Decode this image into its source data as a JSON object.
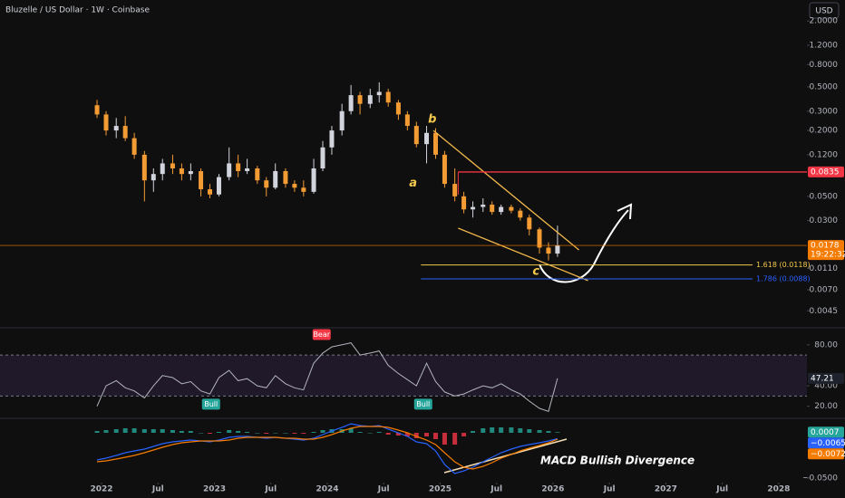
{
  "chart_data": [
    {
      "type": "candlestick",
      "title": "Bluzelle / US Dollar · 1W · Coinbase",
      "currency": "USD",
      "x": [
        2021.96,
        2022.04,
        2022.13,
        2022.21,
        2022.29,
        2022.38,
        2022.46,
        2022.54,
        2022.63,
        2022.71,
        2022.79,
        2022.88,
        2022.96,
        2023.04,
        2023.13,
        2023.21,
        2023.29,
        2023.38,
        2023.46,
        2023.54,
        2023.63,
        2023.71,
        2023.79,
        2023.88,
        2023.96,
        2024.04,
        2024.13,
        2024.21,
        2024.29,
        2024.38,
        2024.46,
        2024.54,
        2024.63,
        2024.71,
        2024.79,
        2024.88,
        2024.96,
        2025.04,
        2025.13,
        2025.21,
        2025.29,
        2025.38,
        2025.46,
        2025.54,
        2025.63,
        2025.71,
        2025.79,
        2025.88,
        2025.96,
        2026.04
      ],
      "open": [
        0.34,
        0.28,
        0.2,
        0.22,
        0.17,
        0.12,
        0.07,
        0.08,
        0.1,
        0.09,
        0.08,
        0.085,
        0.058,
        0.052,
        0.075,
        0.1,
        0.085,
        0.09,
        0.07,
        0.06,
        0.085,
        0.065,
        0.06,
        0.055,
        0.09,
        0.14,
        0.2,
        0.3,
        0.42,
        0.35,
        0.42,
        0.45,
        0.36,
        0.28,
        0.22,
        0.15,
        0.19,
        0.12,
        0.065,
        0.05,
        0.038,
        0.04,
        0.042,
        0.036,
        0.04,
        0.037,
        0.032,
        0.025,
        0.017,
        0.015
      ],
      "high": [
        0.38,
        0.3,
        0.26,
        0.27,
        0.19,
        0.13,
        0.09,
        0.11,
        0.12,
        0.1,
        0.1,
        0.09,
        0.065,
        0.08,
        0.14,
        0.12,
        0.11,
        0.095,
        0.075,
        0.1,
        0.09,
        0.07,
        0.07,
        0.11,
        0.16,
        0.22,
        0.35,
        0.52,
        0.45,
        0.48,
        0.55,
        0.48,
        0.38,
        0.3,
        0.24,
        0.22,
        0.21,
        0.13,
        0.09,
        0.055,
        0.045,
        0.048,
        0.045,
        0.042,
        0.042,
        0.039,
        0.034,
        0.026,
        0.019,
        0.027
      ],
      "low": [
        0.26,
        0.18,
        0.17,
        0.16,
        0.11,
        0.045,
        0.055,
        0.07,
        0.08,
        0.07,
        0.07,
        0.05,
        0.048,
        0.05,
        0.07,
        0.075,
        0.08,
        0.065,
        0.05,
        0.058,
        0.06,
        0.055,
        0.05,
        0.053,
        0.085,
        0.12,
        0.18,
        0.28,
        0.28,
        0.32,
        0.36,
        0.33,
        0.25,
        0.2,
        0.14,
        0.1,
        0.11,
        0.06,
        0.045,
        0.035,
        0.032,
        0.036,
        0.034,
        0.034,
        0.035,
        0.03,
        0.022,
        0.015,
        0.013,
        0.014
      ],
      "close": [
        0.28,
        0.2,
        0.22,
        0.17,
        0.12,
        0.07,
        0.08,
        0.1,
        0.09,
        0.08,
        0.085,
        0.058,
        0.052,
        0.075,
        0.1,
        0.085,
        0.09,
        0.07,
        0.06,
        0.085,
        0.065,
        0.06,
        0.055,
        0.09,
        0.14,
        0.2,
        0.3,
        0.42,
        0.35,
        0.42,
        0.45,
        0.36,
        0.28,
        0.22,
        0.15,
        0.19,
        0.12,
        0.065,
        0.05,
        0.038,
        0.04,
        0.042,
        0.036,
        0.04,
        0.037,
        0.032,
        0.025,
        0.017,
        0.015,
        0.0178
      ],
      "up_color": "#d1d4dc",
      "down_color": "#f39c34",
      "log_scale": true,
      "grid": false,
      "xlim": [
        2021.1,
        2028.25
      ],
      "ylim": [
        0.00315,
        3.11
      ],
      "xticks": [
        2022,
        {
          "value": 2022.5,
          "label": "Jul"
        },
        2023,
        {
          "value": 2023.5,
          "label": "Jul"
        },
        2024,
        {
          "value": 2024.5,
          "label": "Jul"
        },
        2025,
        {
          "value": 2025.5,
          "label": "Jul"
        },
        2026,
        {
          "value": 2026.5,
          "label": "Jul"
        },
        2027,
        {
          "value": 2027.5,
          "label": "Jul"
        },
        2028
      ],
      "yticks": [
        {
          "value": 2.0,
          "label": "2.0000"
        },
        {
          "value": 1.2,
          "label": "1.2000"
        },
        {
          "value": 0.8,
          "label": "0.8000"
        },
        {
          "value": 0.5,
          "label": "0.5000"
        },
        {
          "value": 0.3,
          "label": "0.3000"
        },
        {
          "value": 0.2,
          "label": "0.2000"
        },
        {
          "value": 0.12,
          "label": "0.1200"
        },
        {
          "value": 0.05,
          "label": "0.0500"
        },
        {
          "value": 0.03,
          "label": "0.0300"
        },
        {
          "value": 0.011,
          "label": "0.0110"
        },
        {
          "value": 0.007,
          "label": "0.0070"
        },
        {
          "value": 0.0045,
          "label": "0.0045"
        }
      ],
      "countdown": "19:22:32",
      "price_color": "#f57c00",
      "levels": [
        {
          "value": 0.0835,
          "from": 2025.16,
          "color": "#f23645"
        },
        {
          "value": 0.0118,
          "label": "1.618 (0.0118)",
          "from": 2024.83,
          "color": "#f2c94c"
        },
        {
          "value": 0.0088,
          "label": "1.786 (0.0088)",
          "from": 2024.83,
          "color": "#2962ff"
        }
      ],
      "trendlines": [
        {
          "x": [
            2024.94,
            2026.23
          ],
          "y": [
            0.2,
            0.0162
          ]
        },
        {
          "x": [
            2025.16,
            2026.31
          ],
          "y": [
            0.0256,
            0.0085
          ]
        }
      ],
      "trend_color": "#f2b84b",
      "wave_labels": [
        {
          "text": "a",
          "x": 2024.76,
          "y": 0.066
        },
        {
          "text": "b",
          "x": 2024.93,
          "y": 0.252
        },
        {
          "text": "c",
          "x": 2025.85,
          "y": 0.0103
        }
      ]
    },
    {
      "type": "line",
      "x": [
        2021.96,
        2022.04,
        2022.13,
        2022.21,
        2022.29,
        2022.38,
        2022.46,
        2022.54,
        2022.63,
        2022.71,
        2022.79,
        2022.88,
        2022.96,
        2023.04,
        2023.13,
        2023.21,
        2023.29,
        2023.38,
        2023.46,
        2023.54,
        2023.63,
        2023.71,
        2023.79,
        2023.88,
        2023.96,
        2024.04,
        2024.13,
        2024.21,
        2024.29,
        2024.38,
        2024.46,
        2024.54,
        2024.63,
        2024.71,
        2024.79,
        2024.88,
        2024.96,
        2025.04,
        2025.13,
        2025.21,
        2025.29,
        2025.38,
        2025.46,
        2025.54,
        2025.63,
        2025.71,
        2025.79,
        2025.88,
        2025.96,
        2026.04
      ],
      "values": [
        20,
        40,
        45,
        38,
        35,
        28,
        40,
        50,
        48,
        42,
        44,
        35,
        32,
        48,
        55,
        45,
        47,
        40,
        38,
        50,
        42,
        38,
        36,
        62,
        72,
        78,
        80,
        82,
        70,
        72,
        74,
        60,
        52,
        46,
        40,
        62,
        44,
        34,
        30,
        32,
        36,
        40,
        38,
        42,
        36,
        32,
        25,
        18,
        15,
        47.21
      ],
      "color": "#b2b5be",
      "xlim": [
        2021.1,
        2028.25
      ],
      "ylim": [
        10,
        94
      ],
      "yticks": [
        {
          "value": 80,
          "label": "80.00"
        },
        {
          "value": 40,
          "label": "40.00"
        },
        {
          "value": 20,
          "label": "20.00"
        }
      ],
      "band": [
        30,
        70
      ],
      "band_color": "#7e57c2",
      "signals": [
        {
          "text": "Bull",
          "x": 2022.97,
          "y": 22,
          "color": "#26a69a"
        },
        {
          "text": "Bear",
          "x": 2023.95,
          "y": 90,
          "color": "#f23645"
        },
        {
          "text": "Bull",
          "x": 2024.85,
          "y": 22,
          "color": "#26a69a"
        }
      ]
    },
    {
      "type": "macd",
      "x": [
        2021.96,
        2022.04,
        2022.13,
        2022.21,
        2022.29,
        2022.38,
        2022.46,
        2022.54,
        2022.63,
        2022.71,
        2022.79,
        2022.88,
        2022.96,
        2023.04,
        2023.13,
        2023.21,
        2023.29,
        2023.38,
        2023.46,
        2023.54,
        2023.63,
        2023.71,
        2023.79,
        2023.88,
        2023.96,
        2024.04,
        2024.13,
        2024.21,
        2024.29,
        2024.38,
        2024.46,
        2024.54,
        2024.63,
        2024.71,
        2024.79,
        2024.88,
        2024.96,
        2025.04,
        2025.13,
        2025.21,
        2025.29,
        2025.38,
        2025.46,
        2025.54,
        2025.63,
        2025.71,
        2025.79,
        2025.88,
        2025.96,
        2026.04
      ],
      "histogram": {
        "values": [
          0.002,
          0.003,
          0.004,
          0.005,
          0.005,
          0.004,
          0.004,
          0.004,
          0.003,
          0.002,
          0.002,
          0,
          -0.001,
          0.001,
          0.003,
          0.002,
          0.001,
          0,
          -0.001,
          0,
          0,
          -0.001,
          -0.001,
          0.001,
          0.003,
          0.004,
          0.004,
          0.005,
          0.001,
          0,
          0.001,
          -0.002,
          -0.003,
          -0.004,
          -0.006,
          -0.004,
          -0.007,
          -0.013,
          -0.013,
          -0.004,
          0.002,
          0.005,
          0.006,
          0.006,
          0.006,
          0.005,
          0.004,
          0.003,
          0.002,
          0.0007
        ],
        "pos_color": "#26a69a",
        "neg_color": "#f23645"
      },
      "series": [
        {
          "values": [
            -0.03,
            -0.028,
            -0.025,
            -0.022,
            -0.02,
            -0.018,
            -0.015,
            -0.012,
            -0.01,
            -0.009,
            -0.008,
            -0.009,
            -0.01,
            -0.008,
            -0.005,
            -0.004,
            -0.004,
            -0.005,
            -0.006,
            -0.005,
            -0.006,
            -0.007,
            -0.008,
            -0.006,
            -0.002,
            0.002,
            0.006,
            0.01,
            0.008,
            0.007,
            0.008,
            0.004,
            0.0,
            -0.004,
            -0.01,
            -0.012,
            -0.02,
            -0.035,
            -0.045,
            -0.042,
            -0.038,
            -0.032,
            -0.027,
            -0.022,
            -0.018,
            -0.015,
            -0.013,
            -0.011,
            -0.009,
            -0.0065
          ],
          "color": "#2962ff",
          "value_labels": [
            null,
            null,
            null,
            null,
            null,
            null,
            null,
            null,
            null,
            null,
            null,
            null,
            null,
            null,
            null,
            null,
            null,
            null,
            null,
            null,
            null,
            null,
            null,
            null,
            null,
            null,
            null,
            null,
            null,
            null,
            null,
            null,
            null,
            null,
            null,
            null,
            null,
            null,
            null,
            null,
            null,
            null,
            null,
            null,
            null,
            null,
            null,
            null,
            null,
            "−0.0065"
          ]
        },
        {
          "values": [
            -0.032,
            -0.031,
            -0.029,
            -0.027,
            -0.025,
            -0.022,
            -0.019,
            -0.016,
            -0.013,
            -0.011,
            -0.01,
            -0.009,
            -0.009,
            -0.009,
            -0.008,
            -0.006,
            -0.005,
            -0.005,
            -0.005,
            -0.005,
            -0.006,
            -0.006,
            -0.007,
            -0.007,
            -0.005,
            -0.002,
            0.002,
            0.005,
            0.007,
            0.007,
            0.007,
            0.006,
            0.003,
            0.0,
            -0.004,
            -0.008,
            -0.013,
            -0.022,
            -0.032,
            -0.038,
            -0.04,
            -0.037,
            -0.033,
            -0.028,
            -0.024,
            -0.02,
            -0.017,
            -0.014,
            -0.011,
            -0.0072
          ],
          "color": "#f57c00",
          "value_labels": [
            null,
            null,
            null,
            null,
            null,
            null,
            null,
            null,
            null,
            null,
            null,
            null,
            null,
            null,
            null,
            null,
            null,
            null,
            null,
            null,
            null,
            null,
            null,
            null,
            null,
            null,
            null,
            null,
            null,
            null,
            null,
            null,
            null,
            null,
            null,
            null,
            null,
            null,
            null,
            null,
            null,
            null,
            null,
            null,
            null,
            null,
            null,
            null,
            null,
            "−0.0072"
          ]
        }
      ],
      "xlim": [
        2021.1,
        2028.25
      ],
      "ylim": [
        -0.057,
        0.014
      ],
      "yticks": [
        {
          "value": -0.05,
          "label": "−0.0500"
        }
      ],
      "annotation": "MACD Bullish Divergence"
    }
  ]
}
